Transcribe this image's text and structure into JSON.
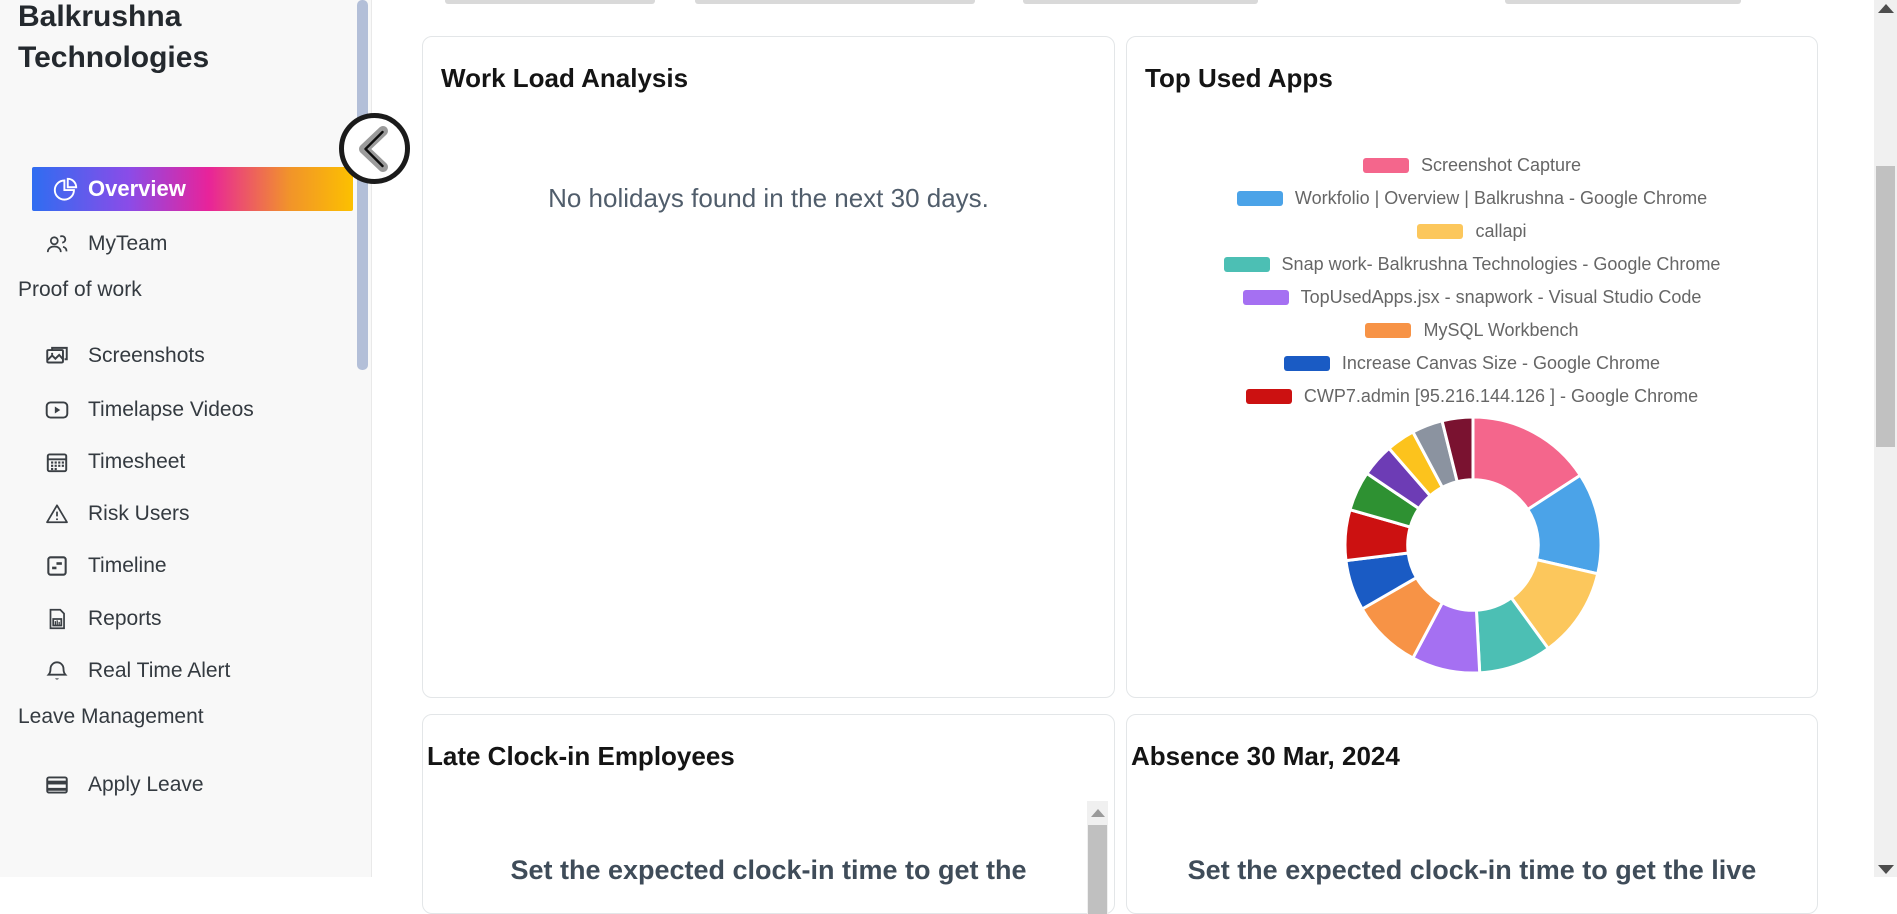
{
  "sidebar": {
    "title": "Balkrushna Technologies",
    "menu": {
      "overview": "Overview",
      "myteam": "MyTeam",
      "section_proof": "Proof of work",
      "screenshots": "Screenshots",
      "timelapse": "Timelapse Videos",
      "timesheet": "Timesheet",
      "risk_users": "Risk Users",
      "timeline": "Timeline",
      "reports": "Reports",
      "real_time_alert": "Real Time Alert",
      "section_leave": "Leave Management",
      "apply_leave": "Apply Leave"
    }
  },
  "colors": {
    "active_item_gradient": [
      "#2f6df1",
      "#8a4ce8",
      "#e8239a",
      "#f1932b",
      "#fcc000"
    ],
    "sidebar_scrollbar_thumb": "#b3bfd8",
    "scrollbar_thumb": "#c1c1c1",
    "scrollbar_track": "#f0f0f0"
  },
  "cards": {
    "work_load": {
      "title": "Work Load Analysis",
      "message": "No holidays found in the next 30 days."
    },
    "top_used_apps": {
      "title": "Top Used Apps"
    },
    "late_clock_in": {
      "title": "Late Clock-in Employees",
      "message": "Set the expected clock-in time to get the"
    },
    "absence": {
      "title": "Absence 30 Mar, 2024",
      "message": "Set the expected clock-in time to get the live"
    }
  },
  "chart_data": {
    "type": "pie",
    "title": "Top Used Apps",
    "subtype": "doughnut",
    "legend_position": "top",
    "hole_ratio": 0.51,
    "segments": [
      {
        "label": "Screenshot Capture",
        "color": "#f4668c",
        "angle_deg": 57
      },
      {
        "label": "Workfolio | Overview | Balkrushna - Google Chrome",
        "color": "#4ba3e8",
        "angle_deg": 46
      },
      {
        "label": "callapi",
        "color": "#fcc75c",
        "angle_deg": 41
      },
      {
        "label": "Snap work- Balkrushna Technologies - Google Chrome",
        "color": "#4cbfb4",
        "angle_deg": 33
      },
      {
        "label": "TopUsedApps.jsx - snapwork - Visual Studio Code",
        "color": "#a570f2",
        "angle_deg": 31
      },
      {
        "label": "MySQL Workbench",
        "color": "#f79346",
        "angle_deg": 32
      },
      {
        "label": "Increase Canvas Size - Google Chrome",
        "color": "#1a5bc4",
        "angle_deg": 23
      },
      {
        "label": "CWP7.admin [95.216.144.126 ] - Google Chrome",
        "color": "#cc1111",
        "angle_deg": 23
      },
      {
        "label": "",
        "color": "#2e9132",
        "angle_deg": 18
      },
      {
        "label": "",
        "color": "#6d3cb5",
        "angle_deg": 15
      },
      {
        "label": "",
        "color": "#fcc31d",
        "angle_deg": 13
      },
      {
        "label": "",
        "color": "#8b93a0",
        "angle_deg": 14
      },
      {
        "label": "",
        "color": "#7a1230",
        "angle_deg": 14
      }
    ]
  }
}
